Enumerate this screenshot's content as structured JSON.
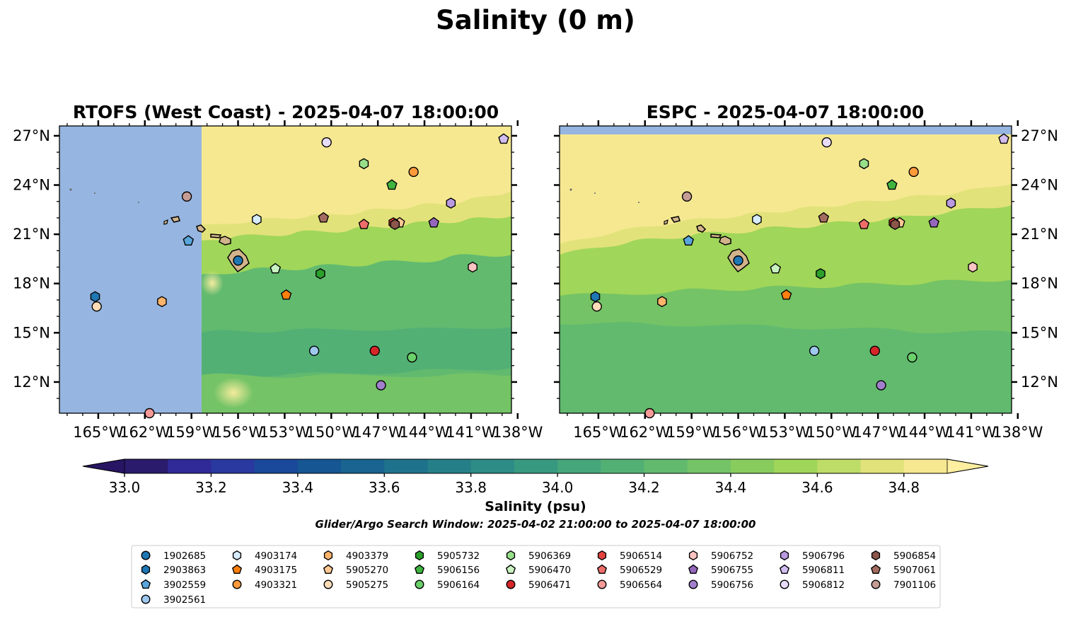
{
  "title": "Salinity (0 m)",
  "colorbar": {
    "label": "Salinity (psu)",
    "ticks": [
      "33.0",
      "33.2",
      "33.4",
      "33.6",
      "33.8",
      "34.0",
      "34.2",
      "34.4",
      "34.6",
      "34.8"
    ],
    "range": [
      33.0,
      34.9
    ],
    "step": 0.1,
    "colors": [
      "#2a1b6c",
      "#2f2a97",
      "#29399f",
      "#1a489a",
      "#155693",
      "#196490",
      "#1e728c",
      "#257f88",
      "#2d8c85",
      "#379980",
      "#45a57b",
      "#53b075",
      "#62ba6f",
      "#74c366",
      "#88cc5e",
      "#a0d659",
      "#bedc68",
      "#e2e27a",
      "#f6e891"
    ],
    "under_color": "#281563",
    "over_color": "#fdeea0"
  },
  "search_window": "Glider/Argo Search Window: 2025-04-02 21:00:00 to 2025-04-07 18:00:00",
  "chart_data": [
    {
      "type": "scatter",
      "title": "RTOFS (West Coast) - 2025-04-07 18:00:00",
      "xlabel": "",
      "ylabel": "",
      "xlim": [
        -167.5,
        -138.4
      ],
      "ylim": [
        10.1,
        27.6
      ],
      "x_ticks": [
        "165°W",
        "162°W",
        "159°W",
        "156°W",
        "153°W",
        "150°W",
        "147°W",
        "144°W",
        "141°W",
        "138°W"
      ],
      "y_ticks": [
        "27°N",
        "24°N",
        "21°N",
        "18°N",
        "15°N",
        "12°N"
      ],
      "y_tick_side": "left",
      "no_data_extent": "west of 158.4°W",
      "points": [
        {
          "id": "1902685",
          "lon": -156.0,
          "lat": 19.4
        },
        {
          "id": "2903863",
          "lon": -165.2,
          "lat": 17.2
        },
        {
          "id": "3902559",
          "lon": -159.2,
          "lat": 20.6
        },
        {
          "id": "3902561",
          "lon": -151.1,
          "lat": 13.9
        },
        {
          "id": "4903174",
          "lon": -154.8,
          "lat": 21.9
        },
        {
          "id": "4903175",
          "lon": -152.9,
          "lat": 17.3
        },
        {
          "id": "4903321",
          "lon": -144.7,
          "lat": 24.8
        },
        {
          "id": "4903379",
          "lon": -160.9,
          "lat": 16.9
        },
        {
          "id": "5905270",
          "lon": -145.6,
          "lat": 21.7
        },
        {
          "id": "5905275",
          "lon": -165.1,
          "lat": 16.6
        },
        {
          "id": "5905732",
          "lon": -150.7,
          "lat": 18.6
        },
        {
          "id": "5906156",
          "lon": -146.1,
          "lat": 24.0
        },
        {
          "id": "5906164",
          "lon": -144.8,
          "lat": 13.5
        },
        {
          "id": "5906369",
          "lon": -147.9,
          "lat": 25.3
        },
        {
          "id": "5906470",
          "lon": -153.6,
          "lat": 18.9
        },
        {
          "id": "5906471",
          "lon": -147.2,
          "lat": 13.9
        },
        {
          "id": "5906514",
          "lon": -146.0,
          "lat": 21.7
        },
        {
          "id": "5906529",
          "lon": -147.9,
          "lat": 21.6
        },
        {
          "id": "5906564",
          "lon": -161.7,
          "lat": 10.1
        },
        {
          "id": "5906752",
          "lon": -140.9,
          "lat": 19.0
        },
        {
          "id": "5906755",
          "lon": -143.4,
          "lat": 21.7
        },
        {
          "id": "5906756",
          "lon": -146.8,
          "lat": 11.8
        },
        {
          "id": "5906796",
          "lon": -142.3,
          "lat": 22.9
        },
        {
          "id": "5906811",
          "lon": -138.9,
          "lat": 26.8
        },
        {
          "id": "5906812",
          "lon": -150.3,
          "lat": 26.6
        },
        {
          "id": "5906854",
          "lon": -145.9,
          "lat": 21.6
        },
        {
          "id": "5907061",
          "lon": -150.5,
          "lat": 22.0
        },
        {
          "id": "7901106",
          "lon": -159.3,
          "lat": 23.3
        }
      ]
    },
    {
      "type": "scatter",
      "title": "ESPC - 2025-04-07 18:00:00",
      "xlabel": "",
      "ylabel": "",
      "xlim": [
        -167.5,
        -138.4
      ],
      "ylim": [
        10.1,
        27.6
      ],
      "x_ticks": [
        "165°W",
        "162°W",
        "159°W",
        "156°W",
        "153°W",
        "150°W",
        "147°W",
        "144°W",
        "141°W",
        "138°W"
      ],
      "y_ticks": [
        "27°N",
        "24°N",
        "21°N",
        "18°N",
        "15°N",
        "12°N"
      ],
      "y_tick_side": "right",
      "no_data_extent": "north of 27.1°N",
      "points": "same as RTOFS panel"
    }
  ],
  "legend": {
    "columns": 9,
    "items": [
      {
        "id": "1902685",
        "marker": "circle",
        "color": "#1f77b4"
      },
      {
        "id": "2903863",
        "marker": "hexagon",
        "color": "#1f77b4"
      },
      {
        "id": "3902559",
        "marker": "pentagon",
        "color": "#5aa6dc"
      },
      {
        "id": "3902561",
        "marker": "circle",
        "color": "#9fc8ee"
      },
      {
        "id": "4903174",
        "marker": "hexagon",
        "color": "#d6ebfb"
      },
      {
        "id": "4903175",
        "marker": "pentagon",
        "color": "#ff7f0e"
      },
      {
        "id": "4903321",
        "marker": "circle",
        "color": "#ff9a3c"
      },
      {
        "id": "4903379",
        "marker": "hexagon",
        "color": "#ffb46b"
      },
      {
        "id": "5905270",
        "marker": "pentagon",
        "color": "#ffc894"
      },
      {
        "id": "5905275",
        "marker": "circle",
        "color": "#ffdcb8"
      },
      {
        "id": "5905732",
        "marker": "hexagon",
        "color": "#2ca02c"
      },
      {
        "id": "5906156",
        "marker": "pentagon",
        "color": "#3fb53f"
      },
      {
        "id": "5906164",
        "marker": "circle",
        "color": "#6ad06a"
      },
      {
        "id": "5906369",
        "marker": "hexagon",
        "color": "#98df8a"
      },
      {
        "id": "5906470",
        "marker": "pentagon",
        "color": "#c8f2c0"
      },
      {
        "id": "5906471",
        "marker": "circle",
        "color": "#d62728"
      },
      {
        "id": "5906514",
        "marker": "hexagon",
        "color": "#e3423f"
      },
      {
        "id": "5906529",
        "marker": "pentagon",
        "color": "#ee6d6a"
      },
      {
        "id": "5906564",
        "marker": "circle",
        "color": "#f59a98"
      },
      {
        "id": "5906752",
        "marker": "hexagon",
        "color": "#fbc4c2"
      },
      {
        "id": "5906755",
        "marker": "pentagon",
        "color": "#9467bd"
      },
      {
        "id": "5906756",
        "marker": "circle",
        "color": "#a27fcc"
      },
      {
        "id": "5906796",
        "marker": "hexagon",
        "color": "#b99ae0"
      },
      {
        "id": "5906811",
        "marker": "pentagon",
        "color": "#d2bdf0"
      },
      {
        "id": "5906812",
        "marker": "circle",
        "color": "#e8dcfb"
      },
      {
        "id": "5906854",
        "marker": "hexagon",
        "color": "#8c564b"
      },
      {
        "id": "5907061",
        "marker": "pentagon",
        "color": "#a46c60"
      },
      {
        "id": "7901106",
        "marker": "circle",
        "color": "#c49c94"
      }
    ]
  },
  "map_colors": {
    "no_data": "#96b5e0",
    "land": "#d2b48c",
    "coastline": "#000000"
  }
}
